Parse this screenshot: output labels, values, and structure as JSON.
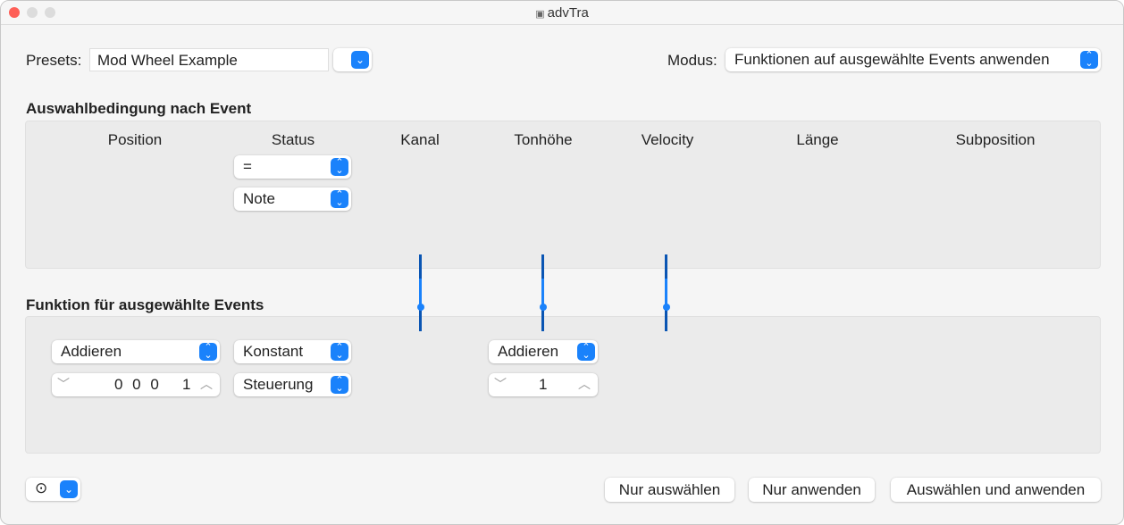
{
  "window": {
    "title": "advTra"
  },
  "presets": {
    "label": "Presets:",
    "value": "Mod Wheel Example"
  },
  "modus": {
    "label": "Modus:",
    "value": "Funktionen auf ausgewählte Events anwenden"
  },
  "selection": {
    "heading": "Auswahlbedingung nach Event",
    "columns": [
      "Position",
      "Status",
      "Kanal",
      "Tonhöhe",
      "Velocity",
      "Länge",
      "Subposition"
    ],
    "status_operator": "=",
    "status_value": "Note"
  },
  "function": {
    "heading": "Funktion für ausgewählte Events",
    "position_op": "Addieren",
    "position_value": "0 0 0",
    "position_value_last": "1",
    "status_op": "Konstant",
    "status_value": "Steuerung",
    "pitch_op": "Addieren",
    "pitch_value": "1"
  },
  "buttons": {
    "select_only": "Nur auswählen",
    "apply_only": "Nur anwenden",
    "select_and_apply": "Auswählen und anwenden"
  },
  "colors": {
    "accent": "#1a82fb",
    "slider_dark": "#0a55b3"
  }
}
